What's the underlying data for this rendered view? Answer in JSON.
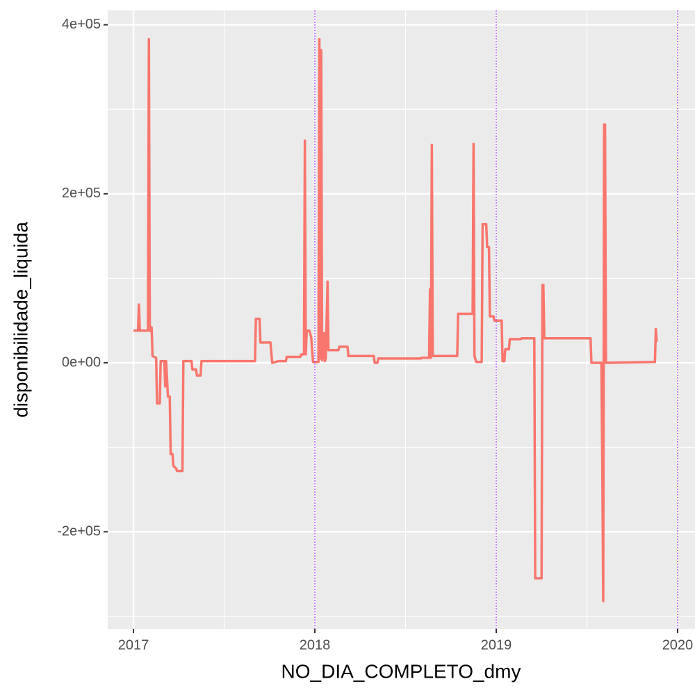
{
  "chart_data": {
    "type": "line",
    "x_label": "NO_DIA_COMPLETO_dmy",
    "y_label": "disponibilidade_liquida",
    "xlim": [
      2016.858,
      2020.096
    ],
    "ylim": [
      -315000,
      417000
    ],
    "xticks": [
      2017,
      2018,
      2019,
      2020
    ],
    "yticks": [
      {
        "value": -200000,
        "label": "-2e+05"
      },
      {
        "value": 0,
        "label": "0e+00"
      },
      {
        "value": 200000,
        "label": "2e+05"
      },
      {
        "value": 400000,
        "label": "4e+05"
      }
    ],
    "grid": true,
    "vlines": [
      2018,
      2019,
      2020
    ],
    "vline_color": "#9b30ff",
    "series": [
      {
        "color": "#F8766D",
        "x": [
          2017.0,
          2017.025,
          2017.03,
          2017.035,
          2017.08,
          2017.085,
          2017.09,
          2017.1,
          2017.105,
          2017.125,
          2017.13,
          2017.145,
          2017.15,
          2017.17,
          2017.175,
          2017.18,
          2017.19,
          2017.2,
          2017.205,
          2017.215,
          2017.22,
          2017.235,
          2017.24,
          2017.27,
          2017.275,
          2017.32,
          2017.325,
          2017.345,
          2017.35,
          2017.37,
          2017.375,
          2017.67,
          2017.675,
          2017.695,
          2017.7,
          2017.755,
          2017.765,
          2017.8,
          2017.84,
          2017.845,
          2017.92,
          2017.925,
          2017.94,
          2017.945,
          2017.95,
          2017.955,
          2017.97,
          2017.98,
          2017.99,
          2018.02,
          2018.025,
          2018.03,
          2018.035,
          2018.04,
          2018.05,
          2018.055,
          2018.06,
          2018.07,
          2018.075,
          2018.13,
          2018.135,
          2018.18,
          2018.185,
          2018.325,
          2018.33,
          2018.345,
          2018.35,
          2018.585,
          2018.59,
          2018.63,
          2018.635,
          2018.64,
          2018.645,
          2018.65,
          2018.785,
          2018.79,
          2018.87,
          2018.875,
          2018.88,
          2018.89,
          2018.92,
          2018.925,
          2018.945,
          2018.95,
          2018.96,
          2018.965,
          2018.985,
          2018.99,
          2019.03,
          2019.035,
          2019.045,
          2019.05,
          2019.07,
          2019.075,
          2019.135,
          2019.14,
          2019.21,
          2019.215,
          2019.25,
          2019.255,
          2019.26,
          2019.265,
          2019.52,
          2019.525,
          2019.58,
          2019.585,
          2019.59,
          2019.595,
          2019.6,
          2019.605,
          2019.875,
          2019.88,
          2019.885
        ],
        "values": [
          38000,
          38000,
          69000,
          38000,
          38000,
          383000,
          38000,
          42000,
          8000,
          6000,
          -48000,
          -48000,
          2000,
          2000,
          -28000,
          2000,
          -40000,
          -40000,
          -108000,
          -108000,
          -122000,
          -125000,
          -128000,
          -128000,
          2000,
          2000,
          -8000,
          -8000,
          -15000,
          -15000,
          2000,
          2000,
          52000,
          52000,
          24000,
          24000,
          0,
          2000,
          2000,
          7000,
          7000,
          10000,
          10000,
          263000,
          10000,
          38000,
          38000,
          30000,
          1000,
          1000,
          383000,
          5000,
          370000,
          3000,
          35000,
          2000,
          5000,
          96000,
          15000,
          15000,
          19000,
          19000,
          8000,
          8000,
          0,
          0,
          5000,
          5000,
          6000,
          6000,
          87000,
          6000,
          258000,
          8000,
          8000,
          58000,
          58000,
          259000,
          8000,
          1000,
          1000,
          164000,
          164000,
          137000,
          137000,
          55000,
          55000,
          50000,
          50000,
          2000,
          2000,
          16000,
          16000,
          28000,
          28000,
          29000,
          29000,
          -255000,
          -255000,
          92000,
          92000,
          29000,
          29000,
          0,
          0,
          -122000,
          -282000,
          282000,
          282000,
          0,
          1000,
          40000,
          25000
        ]
      }
    ]
  }
}
